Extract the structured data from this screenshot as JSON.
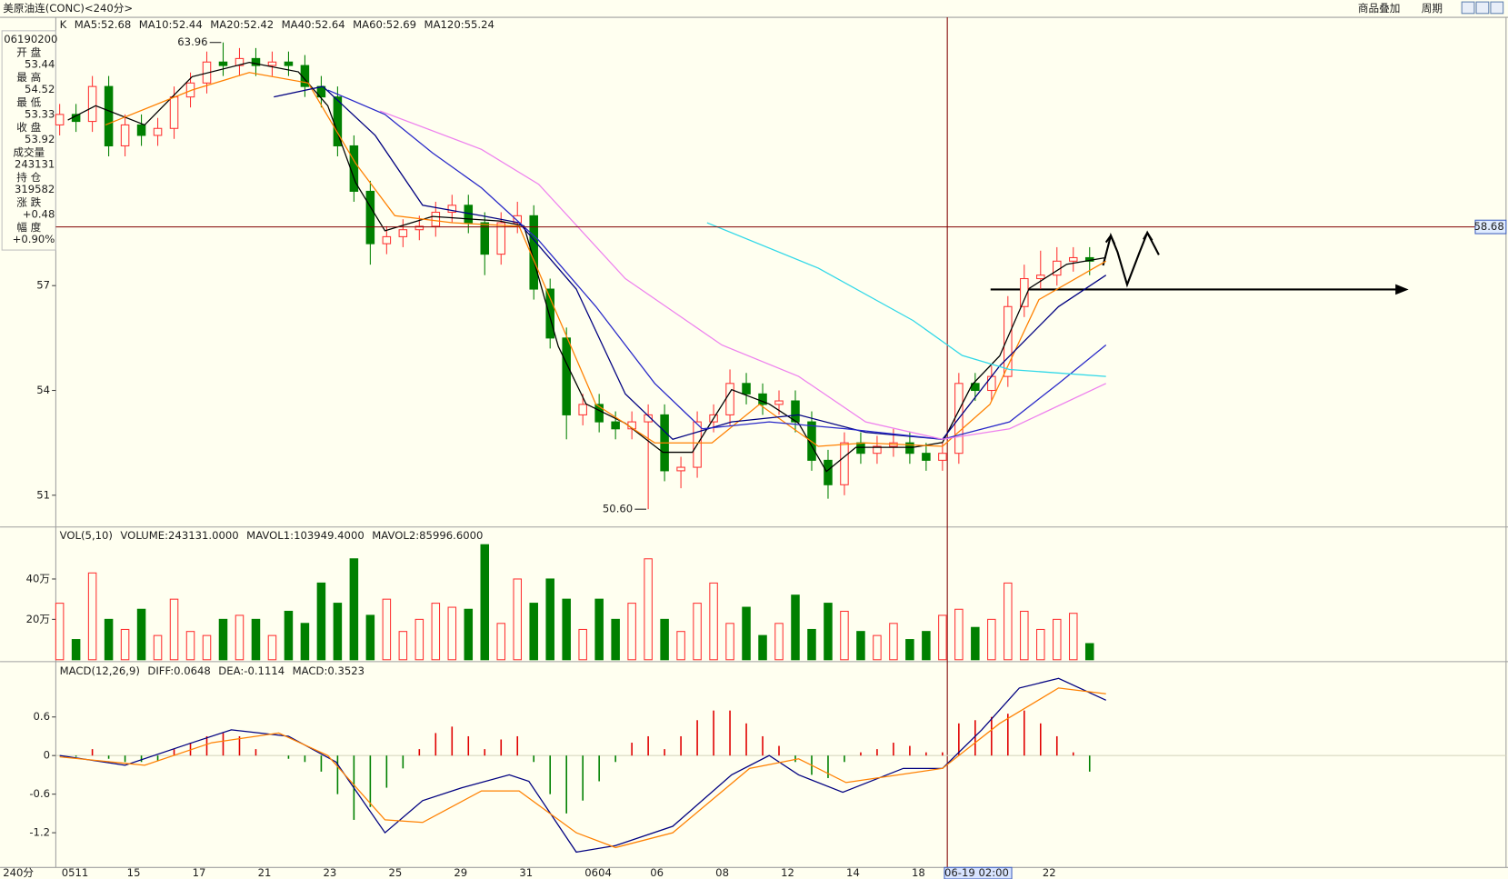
{
  "window": {
    "title": "美原油连(CONC)<240分>",
    "menu": [
      "商品叠加",
      "周期"
    ],
    "period_label": "240分"
  },
  "info_panel": {
    "time": "06190200",
    "rows": [
      {
        "label": "开 盘",
        "value": "53.44",
        "color": "#808080"
      },
      {
        "label": "最 高",
        "value": "54.52",
        "color": "#e00000"
      },
      {
        "label": "最 低",
        "value": "53.33",
        "color": "#008000"
      },
      {
        "label": "收 盘",
        "value": "53.92",
        "color": "#e00000"
      },
      {
        "label": "成交量",
        "value": "243131",
        "color": "#202020"
      },
      {
        "label": "持 仓",
        "value": "319582",
        "color": "#202020"
      },
      {
        "label": "涨 跌",
        "value": "+0.48",
        "color": "#e00000"
      },
      {
        "label": "幅 度",
        "value": "+0.90%",
        "color": "#e00000"
      }
    ]
  },
  "chart_data": [
    {
      "type": "candlestick",
      "label": "K",
      "categories": [
        "0511",
        null,
        null,
        null,
        "15",
        null,
        null,
        null,
        "17",
        null,
        null,
        null,
        "21",
        null,
        null,
        null,
        "23",
        null,
        null,
        null,
        "25",
        null,
        null,
        null,
        "29",
        null,
        null,
        null,
        "31",
        null,
        null,
        null,
        "0604",
        null,
        null,
        null,
        "06",
        null,
        null,
        null,
        "08",
        null,
        null,
        null,
        "12",
        null,
        null,
        null,
        "14",
        null,
        null,
        null,
        "18",
        null,
        "06-19 02:00",
        null,
        null,
        null,
        null,
        null,
        "22",
        null,
        null,
        null
      ],
      "open": [
        61.6,
        61.9,
        61.7,
        62.7,
        61.0,
        61.6,
        61.3,
        61.5,
        62.4,
        62.8,
        63.4,
        63.3,
        63.5,
        63.3,
        63.4,
        63.3,
        62.7,
        62.4,
        61.0,
        59.7,
        58.2,
        58.4,
        58.6,
        58.7,
        59.1,
        59.3,
        58.8,
        57.9,
        58.8,
        59.0,
        56.9,
        55.5,
        53.3,
        53.6,
        53.1,
        52.9,
        53.1,
        53.3,
        51.7,
        51.8,
        53.1,
        53.3,
        54.2,
        53.9,
        53.6,
        53.7,
        53.1,
        52.0,
        51.3,
        52.5,
        52.2,
        52.4,
        52.5,
        52.2,
        52.0,
        52.2,
        54.2,
        54.0,
        54.4,
        56.4,
        57.2,
        57.3,
        57.7,
        57.8
      ],
      "high": [
        62.2,
        62.2,
        63.0,
        63.0,
        61.9,
        61.9,
        61.8,
        62.7,
        63.1,
        63.7,
        63.96,
        63.8,
        63.8,
        63.7,
        63.7,
        63.6,
        63.0,
        62.7,
        61.3,
        60.0,
        58.7,
        58.9,
        59.0,
        59.4,
        59.6,
        59.6,
        59.1,
        59.1,
        59.4,
        59.3,
        57.2,
        55.8,
        53.9,
        53.9,
        53.4,
        53.4,
        53.6,
        53.6,
        52.1,
        53.4,
        53.6,
        54.6,
        54.5,
        54.2,
        54.0,
        54.0,
        53.4,
        52.3,
        52.8,
        52.8,
        52.7,
        52.9,
        52.8,
        52.5,
        52.5,
        54.5,
        54.5,
        54.7,
        56.7,
        57.6,
        58.0,
        58.1,
        58.1,
        58.1
      ],
      "low": [
        61.3,
        61.4,
        61.4,
        60.7,
        60.7,
        61.0,
        61.0,
        61.2,
        62.1,
        62.5,
        63.0,
        63.0,
        63.0,
        63.0,
        63.0,
        62.4,
        62.1,
        60.7,
        59.4,
        57.6,
        57.9,
        58.1,
        58.3,
        58.4,
        58.8,
        58.5,
        57.3,
        57.6,
        58.5,
        56.6,
        55.2,
        52.6,
        53.0,
        52.8,
        52.6,
        52.6,
        50.6,
        51.4,
        51.2,
        51.5,
        52.8,
        53.0,
        53.6,
        53.3,
        53.3,
        52.8,
        51.7,
        50.9,
        51.0,
        51.9,
        51.9,
        52.1,
        51.9,
        51.7,
        51.7,
        51.9,
        53.7,
        53.7,
        54.1,
        56.1,
        56.9,
        57.0,
        57.4,
        57.3
      ],
      "close": [
        61.9,
        61.7,
        62.7,
        61.0,
        61.6,
        61.3,
        61.5,
        62.4,
        62.8,
        63.4,
        63.3,
        63.5,
        63.3,
        63.4,
        63.3,
        62.7,
        62.4,
        61.0,
        59.7,
        58.2,
        58.4,
        58.6,
        58.7,
        59.1,
        59.3,
        58.8,
        57.9,
        58.8,
        59.0,
        56.9,
        55.5,
        53.3,
        53.6,
        53.1,
        52.9,
        53.1,
        53.3,
        51.7,
        51.8,
        53.1,
        53.3,
        54.2,
        53.9,
        53.6,
        53.7,
        53.1,
        52.0,
        51.3,
        52.5,
        52.2,
        52.4,
        52.5,
        52.2,
        52.0,
        52.2,
        54.2,
        54.0,
        54.4,
        56.4,
        57.2,
        57.3,
        57.7,
        57.8,
        57.7
      ],
      "up_color": "#ff3232",
      "down_color": "#008000",
      "ylim": [
        50.09,
        64.68
      ],
      "yticks": [
        51,
        54,
        57
      ],
      "series": [
        {
          "name": "MA5:52.68",
          "color": "#000000",
          "x": [
            0.5,
            2.2,
            5.2,
            8.1,
            11.6,
            14.6,
            16.4,
            18.1,
            19.9,
            22.8,
            26.9,
            28.4,
            30.5,
            32.2,
            34.6,
            36.9,
            38.7,
            41.1,
            43.4,
            45.2,
            46.9,
            48.7,
            52.2,
            54.0,
            55.8,
            57.5,
            59.3,
            61.6,
            64.0
          ],
          "values": [
            61.74,
            62.15,
            61.6,
            62.98,
            63.39,
            63.12,
            62.15,
            59.95,
            58.57,
            58.98,
            58.85,
            58.71,
            55.26,
            53.61,
            53.06,
            52.23,
            52.23,
            54.02,
            53.61,
            53.06,
            51.68,
            52.37,
            52.37,
            52.51,
            54.16,
            54.99,
            56.92,
            57.61,
            57.8
          ]
        },
        {
          "name": "MA10:52.44",
          "color": "#ff8000",
          "x": [
            2.8,
            8.1,
            11.6,
            15.2,
            18.1,
            20.5,
            24.0,
            28.1,
            30.5,
            32.8,
            36.4,
            39.9,
            42.8,
            46.4,
            49.3,
            54.0,
            56.9,
            59.9,
            64.0
          ],
          "values": [
            61.6,
            62.6,
            63.1,
            62.8,
            60.5,
            59.0,
            58.8,
            58.7,
            56.1,
            53.6,
            52.5,
            52.5,
            53.6,
            52.4,
            52.5,
            52.4,
            53.6,
            56.6,
            57.7
          ]
        },
        {
          "name": "MA20:52.42",
          "color": "#000080",
          "x": [
            13.1,
            16.1,
            19.3,
            22.2,
            25.8,
            28.1,
            31.6,
            34.6,
            37.5,
            41.1,
            45.2,
            49.3,
            54.0,
            57.5,
            61.1,
            64.0
          ],
          "values": [
            62.4,
            62.7,
            61.3,
            59.3,
            59.0,
            58.8,
            56.9,
            53.9,
            52.6,
            53.1,
            53.3,
            52.8,
            52.6,
            54.7,
            56.4,
            57.3
          ]
        },
        {
          "name": "MA40:52.64",
          "color": "#2828c8",
          "x": [
            16.4,
            19.9,
            22.8,
            25.8,
            29.3,
            32.8,
            36.4,
            39.3,
            43.4,
            48.1,
            54.0,
            58.1,
            61.1,
            64.0
          ],
          "values": [
            62.6,
            61.9,
            60.8,
            59.8,
            58.3,
            56.4,
            54.2,
            52.9,
            53.1,
            52.9,
            52.6,
            53.1,
            54.2,
            55.3
          ]
        },
        {
          "name": "MA60:52.69",
          "color": "#ee82ee",
          "x": [
            19.6,
            25.8,
            29.3,
            34.6,
            40.5,
            45.2,
            49.3,
            54.0,
            58.1,
            64.0
          ],
          "values": [
            62.0,
            60.9,
            59.9,
            57.2,
            55.3,
            54.4,
            53.1,
            52.6,
            52.9,
            54.2
          ]
        },
        {
          "name": "MA120:55.24",
          "color": "#30d8e8",
          "x": [
            39.6,
            46.4,
            52.2,
            55.2,
            58.1,
            64.0
          ],
          "values": [
            58.8,
            57.5,
            56.0,
            55.0,
            54.6,
            54.4
          ]
        }
      ],
      "extremes": [
        {
          "index": 10,
          "value": 63.96,
          "label": "63.96"
        },
        {
          "index": 36,
          "value": 50.6,
          "label": "50.60"
        }
      ],
      "crosshair": 58.68
    },
    {
      "type": "bar",
      "header": [
        {
          "text": "VOL(5,10)",
          "color": "#202020"
        },
        {
          "text": "VOLUME:243131.0000",
          "color": "#202020"
        },
        {
          "text": "MAVOL1:103949.4000",
          "color": "#000080"
        },
        {
          "text": "MAVOL2:85996.6000",
          "color": "#ff8000"
        }
      ],
      "values": [
        28,
        10,
        43,
        20,
        15,
        25,
        12,
        30,
        14,
        12,
        20,
        22,
        20,
        12,
        24,
        18,
        38,
        28,
        50,
        22,
        30,
        14,
        20,
        28,
        26,
        25,
        57,
        18,
        40,
        28,
        40,
        30,
        15,
        30,
        20,
        28,
        50,
        20,
        14,
        28,
        38,
        18,
        26,
        12,
        18,
        32,
        15,
        28,
        24,
        14,
        12,
        18,
        10,
        14,
        22,
        25,
        16,
        20,
        38,
        24,
        15,
        20,
        23,
        8
      ],
      "ylim": [
        0,
        64.8
      ],
      "yticks": [
        {
          "value": 20,
          "label": "20万"
        },
        {
          "value": 40,
          "label": "40万"
        }
      ]
    },
    {
      "type": "macd",
      "header": [
        {
          "text": "MACD(12,26,9)",
          "color": "#202020"
        },
        {
          "text": "MACD:0.3523",
          "color": "#202020"
        }
      ],
      "values": [
        0,
        -0.02,
        0.1,
        -0.05,
        -0.1,
        -0.1,
        -0.08,
        0.1,
        0.2,
        0.3,
        0.35,
        0.3,
        0.1,
        0,
        -0.05,
        -0.1,
        -0.25,
        -0.6,
        -1.0,
        -0.8,
        -0.5,
        -0.2,
        0.1,
        0.35,
        0.45,
        0.3,
        0.1,
        0.25,
        0.3,
        -0.1,
        -0.6,
        -0.9,
        -0.7,
        -0.4,
        -0.1,
        0.2,
        0.3,
        0.1,
        0.3,
        0.55,
        0.7,
        0.7,
        0.5,
        0.3,
        0.15,
        -0.1,
        -0.3,
        -0.35,
        -0.1,
        0.05,
        0.1,
        0.2,
        0.15,
        0.05,
        0.05,
        0.5,
        0.55,
        0.6,
        0.65,
        0.7,
        0.5,
        0.3,
        0.05,
        -0.25
      ],
      "up_color": "#e00000",
      "down_color": "#008000",
      "series": [
        {
          "name": "DIFF:0.0648",
          "color": "#000080",
          "x": [
            0,
            4,
            8.1,
            10.5,
            14,
            16.9,
            19.9,
            22.2,
            24.6,
            27.5,
            28.7,
            31.6,
            34,
            37.5,
            41.1,
            43.4,
            45.2,
            47.9,
            51.6,
            54,
            56.4,
            58.7,
            61.1,
            64
          ],
          "values": [
            0.0,
            -0.15,
            0.2,
            0.4,
            0.3,
            -0.1,
            -1.2,
            -0.7,
            -0.5,
            -0.3,
            -0.4,
            -1.5,
            -1.4,
            -1.1,
            -0.3,
            0.0,
            -0.3,
            -0.57,
            -0.2,
            -0.2,
            0.4,
            1.05,
            1.2,
            0.86
          ]
        },
        {
          "name": "DEA:-0.1114",
          "color": "#ff8000",
          "x": [
            0,
            5.2,
            9.3,
            13.4,
            16.4,
            19.9,
            22.2,
            25.8,
            28.1,
            31.6,
            34,
            37.5,
            42.2,
            45.2,
            48.1,
            54,
            57.5,
            61.1,
            64
          ],
          "values": [
            -0.02,
            -0.15,
            0.2,
            0.35,
            0.0,
            -1.0,
            -1.04,
            -0.55,
            -0.55,
            -1.2,
            -1.43,
            -1.2,
            -0.2,
            -0.05,
            -0.42,
            -0.2,
            0.5,
            1.05,
            0.96
          ]
        }
      ],
      "ylim": [
        -1.71,
        1.43
      ],
      "yticks": [
        0.6,
        0,
        -0.6,
        -1.2
      ]
    }
  ]
}
